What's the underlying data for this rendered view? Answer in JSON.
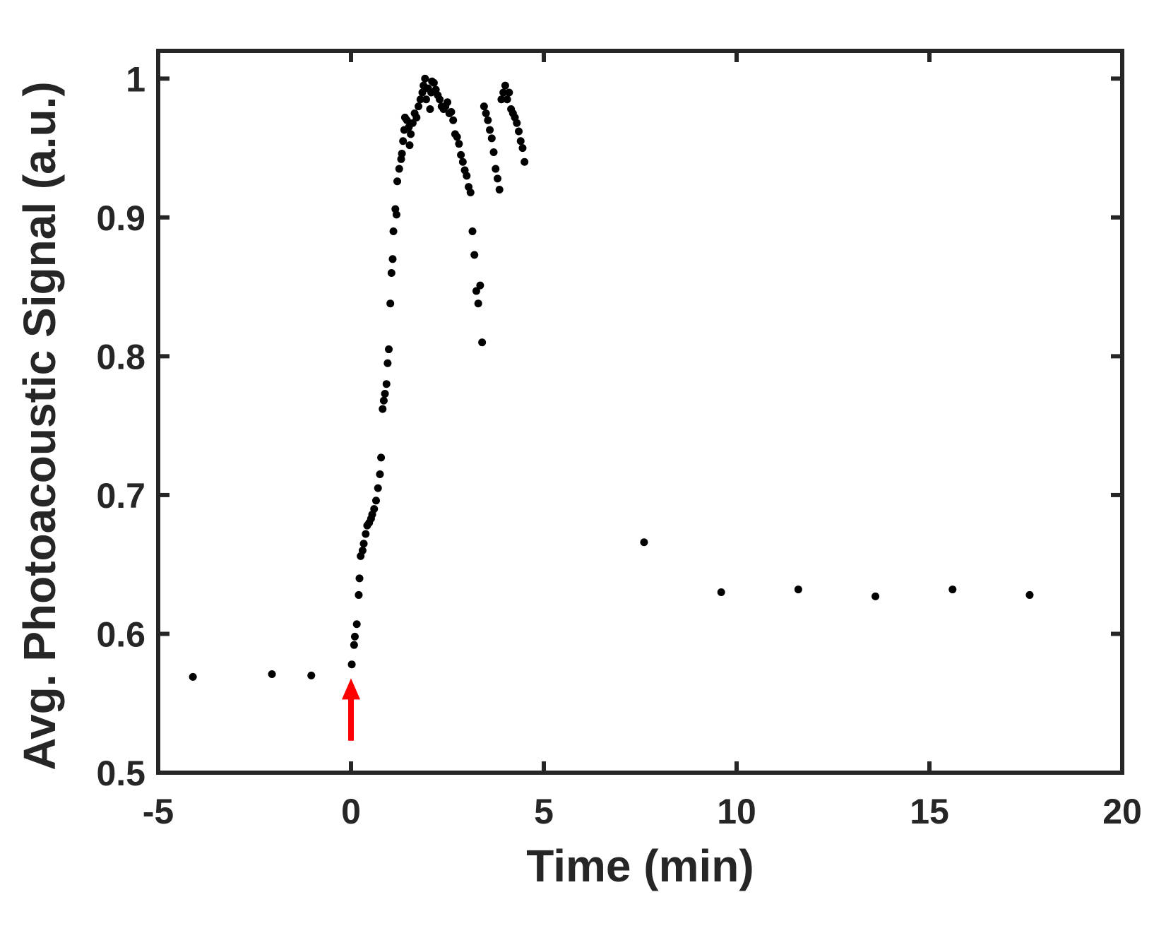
{
  "chart_data": {
    "type": "scatter",
    "title": "",
    "xlabel": "Time (min)",
    "ylabel": "Avg. Photoacoustic Signal (a.u.)",
    "xlim": [
      -5,
      20
    ],
    "ylim": [
      0.5,
      1.02
    ],
    "xticks": [
      -5,
      0,
      5,
      10,
      15,
      20
    ],
    "xtick_labels": [
      "-5",
      "0",
      "5",
      "10",
      "15",
      "20"
    ],
    "yticks": [
      0.5,
      0.6,
      0.7,
      0.8,
      0.9,
      1.0
    ],
    "ytick_labels": [
      "0.5",
      "0.6",
      "0.7",
      "0.8",
      "0.9",
      "1"
    ],
    "grid": false,
    "legend": "none",
    "colors": {
      "points": "#000000",
      "axes": "#262626",
      "arrow": "#ff0000"
    },
    "annotation": {
      "type": "arrow",
      "x": 0,
      "y_from": 0.523,
      "y_to": 0.568
    },
    "series": [
      {
        "x": [
          -4.1,
          -2.05,
          -1.03,
          0.02,
          0.08,
          0.1,
          0.15,
          0.2,
          0.22,
          0.25,
          0.3,
          0.33,
          0.38,
          0.42,
          0.47,
          0.52,
          0.55,
          0.6,
          0.65,
          0.7,
          0.75,
          0.78,
          0.82,
          0.85,
          0.88,
          0.92,
          0.95,
          0.98,
          1.02,
          1.05,
          1.08,
          1.1,
          1.15,
          1.18,
          1.2,
          1.25,
          1.3,
          1.32,
          1.35,
          1.38,
          1.4,
          1.45,
          1.5,
          1.52,
          1.55,
          1.6,
          1.65,
          1.7,
          1.75,
          1.8,
          1.85,
          1.88,
          1.92,
          1.95,
          2.0,
          2.05,
          2.08,
          2.1,
          2.15,
          2.2,
          2.25,
          2.3,
          2.35,
          2.4,
          2.45,
          2.5,
          2.55,
          2.6,
          2.65,
          2.7,
          2.75,
          2.8,
          2.85,
          2.9,
          2.95,
          3.0,
          3.05,
          3.1,
          3.15,
          3.2,
          3.25,
          3.3,
          3.35,
          3.4,
          3.45,
          3.5,
          3.55,
          3.6,
          3.65,
          3.7,
          3.75,
          3.8,
          3.85,
          3.9,
          3.95,
          4.0,
          4.05,
          4.1,
          4.15,
          4.2,
          4.25,
          4.3,
          4.35,
          4.4,
          4.45,
          4.5,
          7.6,
          9.6,
          11.6,
          13.6,
          15.6,
          17.6
        ],
        "y": [
          0.569,
          0.571,
          0.57,
          0.578,
          0.592,
          0.598,
          0.607,
          0.628,
          0.64,
          0.656,
          0.66,
          0.665,
          0.672,
          0.678,
          0.68,
          0.683,
          0.686,
          0.69,
          0.696,
          0.705,
          0.715,
          0.727,
          0.762,
          0.768,
          0.773,
          0.78,
          0.795,
          0.805,
          0.838,
          0.86,
          0.87,
          0.89,
          0.906,
          0.902,
          0.926,
          0.935,
          0.942,
          0.946,
          0.955,
          0.963,
          0.972,
          0.97,
          0.965,
          0.952,
          0.96,
          0.968,
          0.975,
          0.972,
          0.98,
          0.985,
          0.99,
          0.995,
          1.0,
          0.985,
          0.993,
          0.978,
          0.99,
          0.998,
          0.997,
          0.992,
          0.988,
          0.985,
          0.98,
          0.978,
          0.98,
          0.983,
          0.975,
          0.976,
          0.97,
          0.96,
          0.958,
          0.953,
          0.945,
          0.94,
          0.934,
          0.93,
          0.922,
          0.918,
          0.89,
          0.873,
          0.847,
          0.838,
          0.851,
          0.81,
          0.98,
          0.975,
          0.97,
          0.963,
          0.957,
          0.947,
          0.935,
          0.928,
          0.92,
          0.985,
          0.99,
          0.995,
          0.985,
          0.99,
          0.978,
          0.975,
          0.972,
          0.968,
          0.962,
          0.955,
          0.95,
          0.94,
          0.666,
          0.63,
          0.632,
          0.627,
          0.632,
          0.628
        ]
      }
    ]
  }
}
